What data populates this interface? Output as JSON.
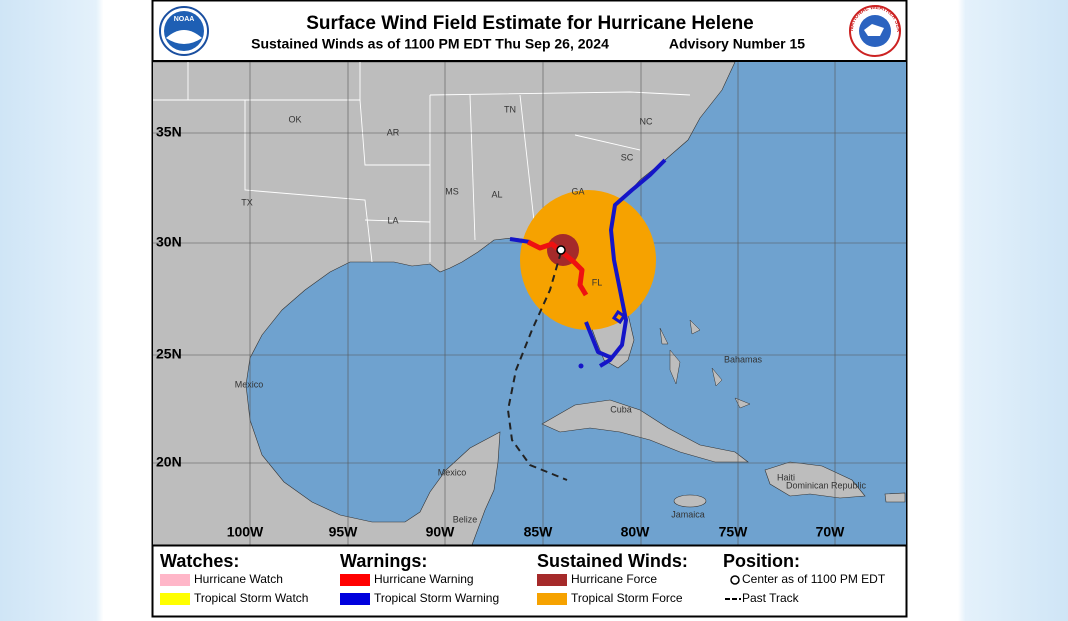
{
  "header": {
    "title": "Surface Wind Field Estimate for Hurricane Helene",
    "subtitle": "Sustained Winds as of 1100 PM EDT Thu Sep 26, 2024",
    "advisory": "Advisory Number 15",
    "logos": {
      "noaa": "NOAA",
      "nws": "NATIONAL WEATHER SERVICE"
    }
  },
  "map": {
    "lat_labels": [
      "35N",
      "30N",
      "25N",
      "20N"
    ],
    "lon_labels": [
      "100W",
      "95W",
      "90W",
      "85W",
      "80W",
      "75W",
      "70W"
    ],
    "region_labels": [
      "OK",
      "AR",
      "TN",
      "NC",
      "SC",
      "GA",
      "AL",
      "MS",
      "LA",
      "TX",
      "FL",
      "Mexico",
      "Bahamas",
      "Cuba",
      "Jamaica",
      "Haiti",
      "Dominican Republic",
      "Mexico",
      "Belize"
    ]
  },
  "legend": {
    "sections": [
      {
        "heading": "Watches:",
        "items": [
          "Hurricane Watch",
          "Tropical Storm Watch"
        ]
      },
      {
        "heading": "Warnings:",
        "items": [
          "Hurricane Warning",
          "Tropical Storm Warning"
        ]
      },
      {
        "heading": "Sustained Winds:",
        "items": [
          "Hurricane Force",
          "Tropical Storm Force"
        ]
      },
      {
        "heading": "Position:",
        "items": [
          "Center as of 1100 PM EDT",
          "Past Track"
        ]
      }
    ]
  }
}
